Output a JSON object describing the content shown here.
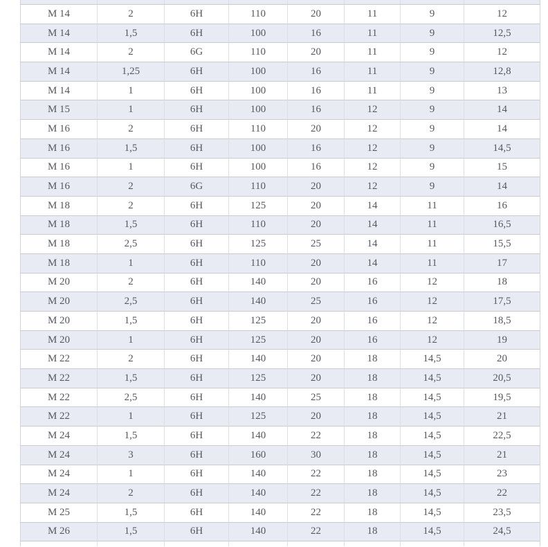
{
  "colors": {
    "background": "#ffffff",
    "zebra_row": "#e9ebf4",
    "row_border": "#c9cbcf",
    "column_border": "#dcdee5",
    "outer_border": "#d2d4db",
    "text": "#56585f"
  },
  "table": {
    "rows": [
      [
        "M 14",
        "2",
        "6H",
        "110",
        "20",
        "11",
        "9",
        "12"
      ],
      [
        "M 14",
        "1,5",
        "6H",
        "100",
        "16",
        "11",
        "9",
        "12,5"
      ],
      [
        "M 14",
        "2",
        "6G",
        "110",
        "20",
        "11",
        "9",
        "12"
      ],
      [
        "M 14",
        "1,25",
        "6H",
        "100",
        "16",
        "11",
        "9",
        "12,8"
      ],
      [
        "M 14",
        "1",
        "6H",
        "100",
        "16",
        "11",
        "9",
        "13"
      ],
      [
        "M 15",
        "1",
        "6H",
        "100",
        "16",
        "12",
        "9",
        "14"
      ],
      [
        "M 16",
        "2",
        "6H",
        "110",
        "20",
        "12",
        "9",
        "14"
      ],
      [
        "M 16",
        "1,5",
        "6H",
        "100",
        "16",
        "12",
        "9",
        "14,5"
      ],
      [
        "M 16",
        "1",
        "6H",
        "100",
        "16",
        "12",
        "9",
        "15"
      ],
      [
        "M 16",
        "2",
        "6G",
        "110",
        "20",
        "12",
        "9",
        "14"
      ],
      [
        "M 18",
        "2",
        "6H",
        "125",
        "20",
        "14",
        "11",
        "16"
      ],
      [
        "M 18",
        "1,5",
        "6H",
        "110",
        "20",
        "14",
        "11",
        "16,5"
      ],
      [
        "M 18",
        "2,5",
        "6H",
        "125",
        "25",
        "14",
        "11",
        "15,5"
      ],
      [
        "M 18",
        "1",
        "6H",
        "110",
        "20",
        "14",
        "11",
        "17"
      ],
      [
        "M 20",
        "2",
        "6H",
        "140",
        "20",
        "16",
        "12",
        "18"
      ],
      [
        "M 20",
        "2,5",
        "6H",
        "140",
        "25",
        "16",
        "12",
        "17,5"
      ],
      [
        "M 20",
        "1,5",
        "6H",
        "125",
        "20",
        "16",
        "12",
        "18,5"
      ],
      [
        "M 20",
        "1",
        "6H",
        "125",
        "20",
        "16",
        "12",
        "19"
      ],
      [
        "M 22",
        "2",
        "6H",
        "140",
        "20",
        "18",
        "14,5",
        "20"
      ],
      [
        "M 22",
        "1,5",
        "6H",
        "125",
        "20",
        "18",
        "14,5",
        "20,5"
      ],
      [
        "M 22",
        "2,5",
        "6H",
        "140",
        "25",
        "18",
        "14,5",
        "19,5"
      ],
      [
        "M 22",
        "1",
        "6H",
        "125",
        "20",
        "18",
        "14,5",
        "21"
      ],
      [
        "M 24",
        "1,5",
        "6H",
        "140",
        "22",
        "18",
        "14,5",
        "22,5"
      ],
      [
        "M 24",
        "3",
        "6H",
        "160",
        "30",
        "18",
        "14,5",
        "21"
      ],
      [
        "M 24",
        "1",
        "6H",
        "140",
        "22",
        "18",
        "14,5",
        "23"
      ],
      [
        "M 24",
        "2",
        "6H",
        "140",
        "22",
        "18",
        "14,5",
        "22"
      ],
      [
        "M 25",
        "1,5",
        "6H",
        "140",
        "22",
        "18",
        "14,5",
        "23,5"
      ],
      [
        "M 26",
        "1,5",
        "6H",
        "140",
        "22",
        "18",
        "14,5",
        "24,5"
      ]
    ]
  }
}
